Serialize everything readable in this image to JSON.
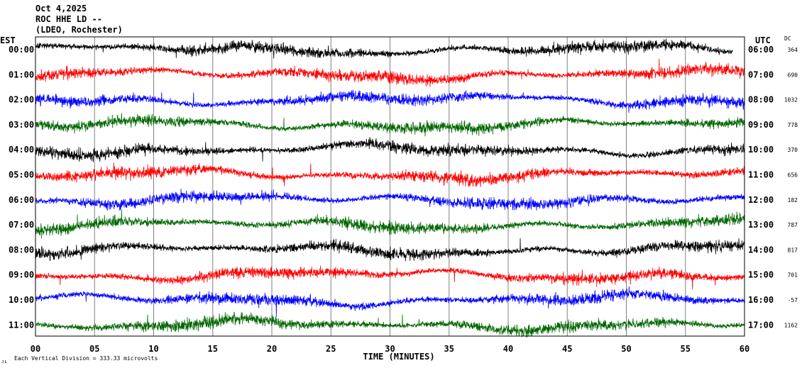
{
  "header": {
    "date": "Oct 4,2025",
    "station": "ROC HHE LD --",
    "network": "(LDEO, Rochester)"
  },
  "footer": {
    "division_note": "Each Vertical Division =  333.33 microvolts",
    "corner_mark": "ᴊʟ"
  },
  "colors": {
    "trace_cycle": [
      "#000000",
      "#ff0000",
      "#0000ff",
      "#006600"
    ],
    "grid": "#808080",
    "text": "#000000"
  },
  "chart_data": {
    "type": "line",
    "title": "",
    "xlabel": "TIME (MINUTES)",
    "ylabel_left": "EST",
    "ylabel_right": "UTC",
    "dc_header": "DC",
    "xlim": [
      0,
      60
    ],
    "x_ticks": [
      "00",
      "05",
      "10",
      "15",
      "20",
      "25",
      "30",
      "35",
      "40",
      "45",
      "50",
      "55",
      "60"
    ],
    "grid": true,
    "traces": [
      {
        "est": "00:00",
        "utc": "06:00",
        "dc": "364",
        "color": "#000000",
        "end_minute": 59
      },
      {
        "est": "01:00",
        "utc": "07:00",
        "dc": "690",
        "color": "#ff0000",
        "end_minute": 60
      },
      {
        "est": "02:00",
        "utc": "08:00",
        "dc": "1032",
        "color": "#0000ff",
        "end_minute": 60
      },
      {
        "est": "03:00",
        "utc": "09:00",
        "dc": "778",
        "color": "#006600",
        "end_minute": 60
      },
      {
        "est": "04:00",
        "utc": "10:00",
        "dc": "370",
        "color": "#000000",
        "end_minute": 60
      },
      {
        "est": "05:00",
        "utc": "11:00",
        "dc": "656",
        "color": "#ff0000",
        "end_minute": 60
      },
      {
        "est": "06:00",
        "utc": "12:00",
        "dc": "182",
        "color": "#0000ff",
        "end_minute": 60
      },
      {
        "est": "07:00",
        "utc": "13:00",
        "dc": "787",
        "color": "#006600",
        "end_minute": 60
      },
      {
        "est": "08:00",
        "utc": "14:00",
        "dc": "817",
        "color": "#000000",
        "end_minute": 60
      },
      {
        "est": "09:00",
        "utc": "15:00",
        "dc": "701",
        "color": "#ff0000",
        "end_minute": 60
      },
      {
        "est": "10:00",
        "utc": "16:00",
        "dc": "-57",
        "color": "#0000ff",
        "end_minute": 60
      },
      {
        "est": "11:00",
        "utc": "17:00",
        "dc": "1162",
        "color": "#006600",
        "end_minute": 60
      }
    ]
  }
}
